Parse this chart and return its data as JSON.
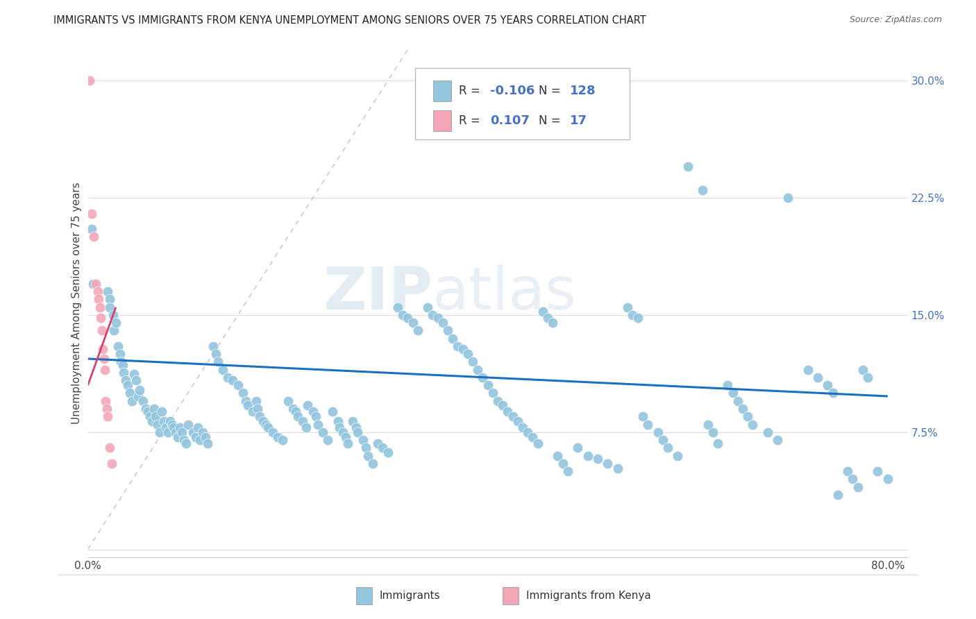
{
  "title": "IMMIGRANTS VS IMMIGRANTS FROM KENYA UNEMPLOYMENT AMONG SENIORS OVER 75 YEARS CORRELATION CHART",
  "source": "Source: ZipAtlas.com",
  "ylabel": "Unemployment Among Seniors over 75 years",
  "xlim": [
    0.0,
    0.82
  ],
  "ylim": [
    -0.005,
    0.32
  ],
  "xtick_positions": [
    0.0,
    0.1,
    0.2,
    0.3,
    0.4,
    0.5,
    0.6,
    0.7,
    0.8
  ],
  "xticklabels_show": {
    "0": "0.0%",
    "8": "80.0%"
  },
  "ytick_positions": [
    0.0,
    0.075,
    0.15,
    0.225,
    0.3
  ],
  "yticklabels": [
    "",
    "7.5%",
    "15.0%",
    "22.5%",
    "30.0%"
  ],
  "blue_color": "#92C5DE",
  "pink_color": "#F4A6B8",
  "line_blue": "#1A6FBF",
  "line_pink": "#D44070",
  "watermark_zip": "ZIP",
  "watermark_atlas": "atlas",
  "blue_line_x": [
    0.0,
    0.8
  ],
  "blue_line_y": [
    0.122,
    0.098
  ],
  "pink_line_x": [
    0.0,
    0.028
  ],
  "pink_line_y": [
    0.105,
    0.155
  ],
  "diag_line_x": [
    0.0,
    0.32
  ],
  "diag_line_y": [
    0.0,
    0.32
  ],
  "blue_scatter": [
    [
      0.004,
      0.205
    ],
    [
      0.005,
      0.17
    ],
    [
      0.02,
      0.165
    ],
    [
      0.022,
      0.16
    ],
    [
      0.022,
      0.155
    ],
    [
      0.025,
      0.15
    ],
    [
      0.026,
      0.14
    ],
    [
      0.028,
      0.145
    ],
    [
      0.03,
      0.13
    ],
    [
      0.032,
      0.125
    ],
    [
      0.033,
      0.12
    ],
    [
      0.035,
      0.118
    ],
    [
      0.036,
      0.113
    ],
    [
      0.038,
      0.108
    ],
    [
      0.04,
      0.105
    ],
    [
      0.042,
      0.1
    ],
    [
      0.044,
      0.095
    ],
    [
      0.046,
      0.112
    ],
    [
      0.048,
      0.108
    ],
    [
      0.05,
      0.098
    ],
    [
      0.052,
      0.102
    ],
    [
      0.055,
      0.095
    ],
    [
      0.058,
      0.09
    ],
    [
      0.06,
      0.088
    ],
    [
      0.062,
      0.085
    ],
    [
      0.064,
      0.082
    ],
    [
      0.066,
      0.09
    ],
    [
      0.068,
      0.085
    ],
    [
      0.07,
      0.08
    ],
    [
      0.072,
      0.075
    ],
    [
      0.074,
      0.088
    ],
    [
      0.076,
      0.082
    ],
    [
      0.078,
      0.078
    ],
    [
      0.08,
      0.075
    ],
    [
      0.082,
      0.082
    ],
    [
      0.084,
      0.08
    ],
    [
      0.086,
      0.078
    ],
    [
      0.088,
      0.075
    ],
    [
      0.09,
      0.072
    ],
    [
      0.092,
      0.078
    ],
    [
      0.094,
      0.075
    ],
    [
      0.096,
      0.07
    ],
    [
      0.098,
      0.068
    ],
    [
      0.1,
      0.08
    ],
    [
      0.105,
      0.075
    ],
    [
      0.108,
      0.072
    ],
    [
      0.11,
      0.078
    ],
    [
      0.112,
      0.07
    ],
    [
      0.115,
      0.075
    ],
    [
      0.118,
      0.072
    ],
    [
      0.12,
      0.068
    ],
    [
      0.125,
      0.13
    ],
    [
      0.128,
      0.125
    ],
    [
      0.13,
      0.12
    ],
    [
      0.135,
      0.115
    ],
    [
      0.14,
      0.11
    ],
    [
      0.145,
      0.108
    ],
    [
      0.15,
      0.105
    ],
    [
      0.155,
      0.1
    ],
    [
      0.158,
      0.095
    ],
    [
      0.16,
      0.092
    ],
    [
      0.165,
      0.088
    ],
    [
      0.168,
      0.095
    ],
    [
      0.17,
      0.09
    ],
    [
      0.172,
      0.085
    ],
    [
      0.175,
      0.082
    ],
    [
      0.178,
      0.08
    ],
    [
      0.18,
      0.078
    ],
    [
      0.185,
      0.075
    ],
    [
      0.19,
      0.072
    ],
    [
      0.195,
      0.07
    ],
    [
      0.2,
      0.095
    ],
    [
      0.205,
      0.09
    ],
    [
      0.208,
      0.088
    ],
    [
      0.21,
      0.085
    ],
    [
      0.215,
      0.082
    ],
    [
      0.218,
      0.078
    ],
    [
      0.22,
      0.092
    ],
    [
      0.225,
      0.088
    ],
    [
      0.228,
      0.085
    ],
    [
      0.23,
      0.08
    ],
    [
      0.235,
      0.075
    ],
    [
      0.24,
      0.07
    ],
    [
      0.245,
      0.088
    ],
    [
      0.25,
      0.082
    ],
    [
      0.252,
      0.078
    ],
    [
      0.255,
      0.075
    ],
    [
      0.258,
      0.072
    ],
    [
      0.26,
      0.068
    ],
    [
      0.265,
      0.082
    ],
    [
      0.268,
      0.078
    ],
    [
      0.27,
      0.075
    ],
    [
      0.275,
      0.07
    ],
    [
      0.278,
      0.065
    ],
    [
      0.28,
      0.06
    ],
    [
      0.285,
      0.055
    ],
    [
      0.29,
      0.068
    ],
    [
      0.295,
      0.065
    ],
    [
      0.3,
      0.062
    ],
    [
      0.31,
      0.155
    ],
    [
      0.315,
      0.15
    ],
    [
      0.32,
      0.148
    ],
    [
      0.325,
      0.145
    ],
    [
      0.33,
      0.14
    ],
    [
      0.34,
      0.155
    ],
    [
      0.345,
      0.15
    ],
    [
      0.35,
      0.148
    ],
    [
      0.355,
      0.145
    ],
    [
      0.36,
      0.14
    ],
    [
      0.365,
      0.135
    ],
    [
      0.37,
      0.13
    ],
    [
      0.375,
      0.128
    ],
    [
      0.38,
      0.125
    ],
    [
      0.385,
      0.12
    ],
    [
      0.39,
      0.115
    ],
    [
      0.395,
      0.11
    ],
    [
      0.4,
      0.105
    ],
    [
      0.405,
      0.1
    ],
    [
      0.41,
      0.095
    ],
    [
      0.415,
      0.092
    ],
    [
      0.42,
      0.088
    ],
    [
      0.425,
      0.085
    ],
    [
      0.43,
      0.082
    ],
    [
      0.435,
      0.078
    ],
    [
      0.44,
      0.075
    ],
    [
      0.445,
      0.072
    ],
    [
      0.45,
      0.068
    ],
    [
      0.455,
      0.152
    ],
    [
      0.46,
      0.148
    ],
    [
      0.465,
      0.145
    ],
    [
      0.47,
      0.06
    ],
    [
      0.475,
      0.055
    ],
    [
      0.48,
      0.05
    ],
    [
      0.49,
      0.065
    ],
    [
      0.5,
      0.06
    ],
    [
      0.51,
      0.058
    ],
    [
      0.52,
      0.055
    ],
    [
      0.53,
      0.052
    ],
    [
      0.54,
      0.155
    ],
    [
      0.545,
      0.15
    ],
    [
      0.55,
      0.148
    ],
    [
      0.555,
      0.085
    ],
    [
      0.56,
      0.08
    ],
    [
      0.57,
      0.075
    ],
    [
      0.575,
      0.07
    ],
    [
      0.58,
      0.065
    ],
    [
      0.59,
      0.06
    ],
    [
      0.6,
      0.245
    ],
    [
      0.615,
      0.23
    ],
    [
      0.62,
      0.08
    ],
    [
      0.625,
      0.075
    ],
    [
      0.63,
      0.068
    ],
    [
      0.64,
      0.105
    ],
    [
      0.645,
      0.1
    ],
    [
      0.65,
      0.095
    ],
    [
      0.655,
      0.09
    ],
    [
      0.66,
      0.085
    ],
    [
      0.665,
      0.08
    ],
    [
      0.68,
      0.075
    ],
    [
      0.69,
      0.07
    ],
    [
      0.7,
      0.225
    ],
    [
      0.72,
      0.115
    ],
    [
      0.73,
      0.11
    ],
    [
      0.74,
      0.105
    ],
    [
      0.745,
      0.1
    ],
    [
      0.75,
      0.035
    ],
    [
      0.76,
      0.05
    ],
    [
      0.765,
      0.045
    ],
    [
      0.77,
      0.04
    ],
    [
      0.775,
      0.115
    ],
    [
      0.78,
      0.11
    ],
    [
      0.79,
      0.05
    ],
    [
      0.8,
      0.045
    ]
  ],
  "pink_scatter": [
    [
      0.002,
      0.3
    ],
    [
      0.004,
      0.215
    ],
    [
      0.006,
      0.2
    ],
    [
      0.008,
      0.17
    ],
    [
      0.01,
      0.165
    ],
    [
      0.011,
      0.16
    ],
    [
      0.012,
      0.155
    ],
    [
      0.013,
      0.148
    ],
    [
      0.014,
      0.14
    ],
    [
      0.015,
      0.128
    ],
    [
      0.016,
      0.122
    ],
    [
      0.017,
      0.115
    ],
    [
      0.018,
      0.095
    ],
    [
      0.019,
      0.09
    ],
    [
      0.02,
      0.085
    ],
    [
      0.022,
      0.065
    ],
    [
      0.024,
      0.055
    ]
  ]
}
